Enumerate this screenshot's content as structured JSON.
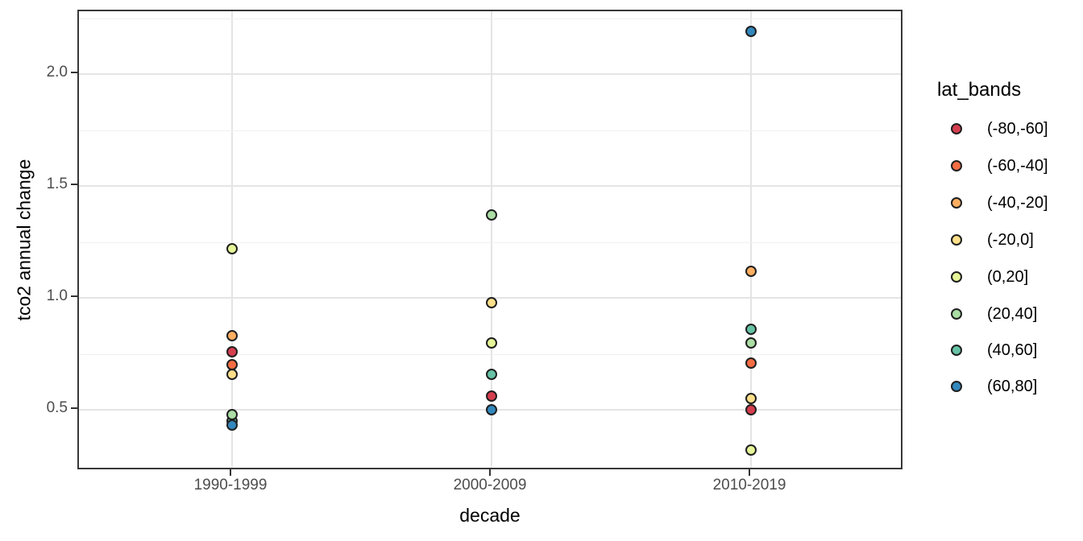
{
  "chart_data": {
    "type": "scatter",
    "title": "",
    "xlabel": "decade",
    "ylabel": "tco2 annual change",
    "categories": [
      "1990-1999",
      "2000-2009",
      "2010-2019"
    ],
    "y_major_ticks": [
      "0.5",
      "1.0",
      "1.5",
      "2.0"
    ],
    "y_minor_ticks": [
      0.25,
      0.75,
      1.25,
      1.75,
      2.25
    ],
    "ylim": [
      0.23,
      2.28
    ],
    "grid": "horizontal major+minor, vertical major at each category",
    "legend": {
      "title": "lat_bands",
      "position": "right",
      "entries": [
        {
          "label": "(-80,-60]",
          "color": "#d53e4f"
        },
        {
          "label": "(-60,-40]",
          "color": "#f46d43"
        },
        {
          "label": "(-40,-20]",
          "color": "#fdae61"
        },
        {
          "label": "(-20,0]",
          "color": "#fee08b"
        },
        {
          "label": "(0,20]",
          "color": "#e6f598"
        },
        {
          "label": "(20,40]",
          "color": "#abdda4"
        },
        {
          "label": "(40,60]",
          "color": "#66c2a5"
        },
        {
          "label": "(60,80]",
          "color": "#3288bd"
        }
      ]
    },
    "series": [
      {
        "name": "(-80,-60]",
        "color": "#d53e4f",
        "values": [
          0.76,
          0.56,
          0.5
        ]
      },
      {
        "name": "(-60,-40]",
        "color": "#f46d43",
        "values": [
          0.7,
          null,
          0.71
        ]
      },
      {
        "name": "(-40,-20]",
        "color": "#fdae61",
        "values": [
          0.83,
          null,
          1.12
        ]
      },
      {
        "name": "(-20,0]",
        "color": "#fee08b",
        "values": [
          0.66,
          0.98,
          0.55
        ]
      },
      {
        "name": "(0,20]",
        "color": "#e6f598",
        "values": [
          1.22,
          0.8,
          0.32
        ]
      },
      {
        "name": "(20,40]",
        "color": "#abdda4",
        "values": [
          0.48,
          1.37,
          0.8
        ]
      },
      {
        "name": "(40,60]",
        "color": "#66c2a5",
        "values": [
          0.45,
          0.66,
          0.86
        ]
      },
      {
        "name": "(60,80]",
        "color": "#3288bd",
        "values": [
          0.43,
          0.5,
          2.19
        ]
      }
    ],
    "points_draw_order": [
      {
        "decade": 0,
        "band": "(0,20]",
        "value": 1.22
      },
      {
        "decade": 0,
        "band": "(-40,-20]",
        "value": 0.83
      },
      {
        "decade": 0,
        "band": "(-80,-60]",
        "value": 0.76
      },
      {
        "decade": 0,
        "band": "(-60,-40]",
        "value": 0.7
      },
      {
        "decade": 0,
        "band": "(-20,0]",
        "value": 0.66
      },
      {
        "decade": 0,
        "band": "(40,60]",
        "value": 0.45
      },
      {
        "decade": 0,
        "band": "(20,40]",
        "value": 0.48
      },
      {
        "decade": 0,
        "band": "(60,80]",
        "value": 0.43
      },
      {
        "decade": 1,
        "band": "(20,40]",
        "value": 1.37
      },
      {
        "decade": 1,
        "band": "(-20,0]",
        "value": 0.98
      },
      {
        "decade": 1,
        "band": "(0,20]",
        "value": 0.8
      },
      {
        "decade": 1,
        "band": "(40,60]",
        "value": 0.66
      },
      {
        "decade": 1,
        "band": "(-80,-60]",
        "value": 0.56
      },
      {
        "decade": 1,
        "band": "(60,80]",
        "value": 0.5
      },
      {
        "decade": 2,
        "band": "(60,80]",
        "value": 2.19
      },
      {
        "decade": 2,
        "band": "(-40,-20]",
        "value": 1.12
      },
      {
        "decade": 2,
        "band": "(40,60]",
        "value": 0.86
      },
      {
        "decade": 2,
        "band": "(20,40]",
        "value": 0.8
      },
      {
        "decade": 2,
        "band": "(-60,-40]",
        "value": 0.71
      },
      {
        "decade": 2,
        "band": "(-20,0]",
        "value": 0.55
      },
      {
        "decade": 2,
        "band": "(-80,-60]",
        "value": 0.5
      },
      {
        "decade": 2,
        "band": "(0,20]",
        "value": 0.32
      }
    ]
  }
}
